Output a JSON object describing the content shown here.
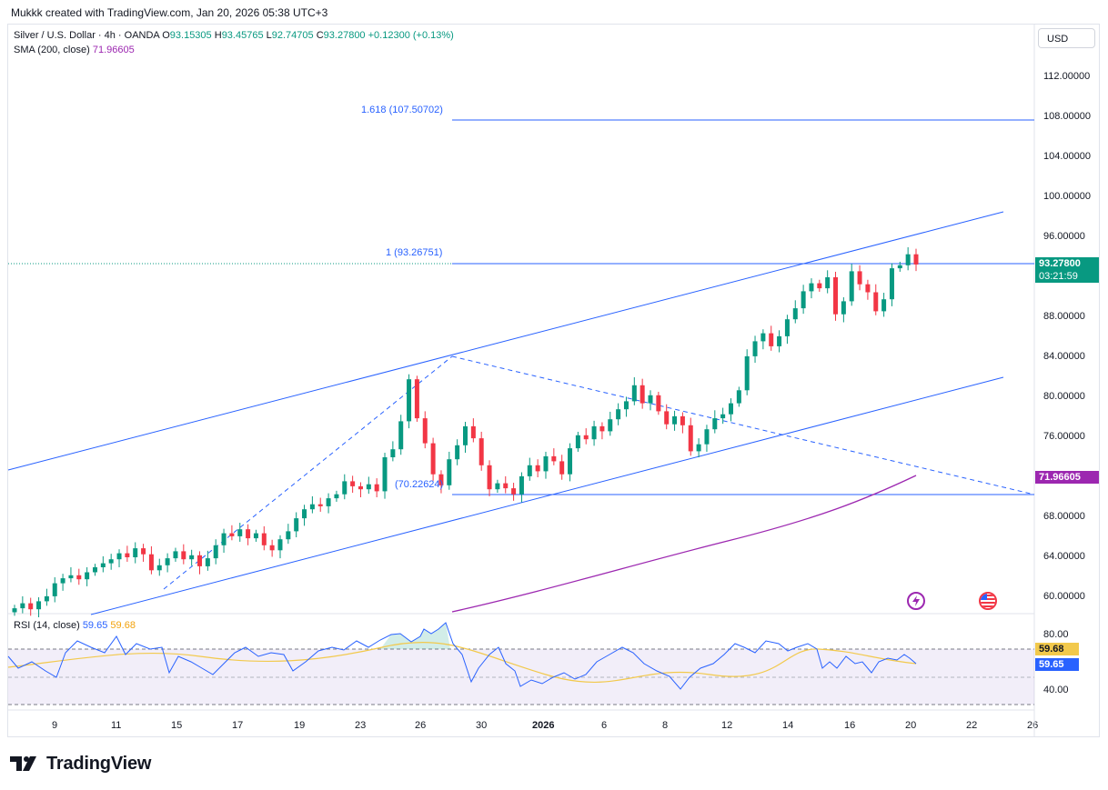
{
  "header": {
    "text": "Mukkk created with TradingView.com, Jan 20, 2026 05:38 UTC+3"
  },
  "legend": {
    "symbol": "Silver / U.S. Dollar · 4h · OANDA",
    "o_label": "O",
    "o_val": "93.15305",
    "h_label": "H",
    "h_val": "93.45765",
    "l_label": "L",
    "l_val": "92.74705",
    "c_label": "C",
    "c_val": "93.27800",
    "change": "+0.12300 (+0.13%)",
    "sma_label": "SMA (200, close)",
    "sma_val": "71.96605",
    "rsi_label": "RSI (14, close)",
    "rsi_val": "59.65",
    "rsi_ma_val": "59.68"
  },
  "currency": "USD",
  "price_axis": [
    "112.00000",
    "108.00000",
    "104.00000",
    "100.00000",
    "96.00000",
    "88.00000",
    "84.00000",
    "80.00000",
    "76.00000",
    "68.00000",
    "64.00000",
    "60.00000"
  ],
  "rsi_axis": [
    "80.00",
    "40.00"
  ],
  "time_axis": [
    "9",
    "11",
    "15",
    "17",
    "19",
    "23",
    "26",
    "30",
    "2026",
    "6",
    "8",
    "12",
    "14",
    "16",
    "20",
    "22",
    "26"
  ],
  "fib_labels": {
    "f1618": "1.618 (107.50702)",
    "f1": "1 (93.26751)",
    "f0": "(70.22624)"
  },
  "tags": {
    "last_price": "93.27800",
    "countdown": "03:21:59",
    "sma": "71.96605",
    "rsi_ma": "59.68",
    "rsi": "59.65"
  },
  "colors": {
    "up": "#089981",
    "down": "#f23645",
    "line": "#2962ff",
    "sma": "#9c27b0",
    "rsi_ma": "#f2c94c"
  },
  "brand": {
    "name": "TradingView"
  },
  "chart_data": {
    "type": "candlestick",
    "symbol": "Silver / U.S. Dollar",
    "timeframe": "4h",
    "last": {
      "open": 93.15305,
      "high": 93.45765,
      "low": 92.74705,
      "close": 93.278
    },
    "x_ticks": [
      "9",
      "11",
      "15",
      "17",
      "19",
      "23",
      "26",
      "30",
      "2026",
      "6",
      "8",
      "12",
      "14",
      "16",
      "20",
      "22",
      "26"
    ],
    "y_ticks": [
      60,
      64,
      68,
      76,
      80,
      84,
      88,
      96,
      100,
      104,
      108,
      112
    ],
    "series": [
      {
        "name": "SMA (200, close)",
        "last": 71.96605
      },
      {
        "name": "RSI (14, close)",
        "last": 59.65
      },
      {
        "name": "RSI MA",
        "last": 59.68
      }
    ],
    "fib_levels": [
      {
        "ratio": "1.618",
        "price": 107.50702
      },
      {
        "ratio": "1",
        "price": 93.26751
      },
      {
        "ratio": "0",
        "price": 70.22624
      }
    ],
    "approx_closes": [
      58.9,
      59.4,
      58.8,
      59.6,
      60.1,
      61.4,
      61.9,
      62.2,
      61.8,
      62.5,
      63.0,
      63.4,
      63.8,
      64.4,
      64.0,
      64.9,
      64.3,
      62.7,
      63.2,
      63.9,
      64.6,
      63.8,
      64.2,
      63.1,
      63.9,
      65.2,
      66.4,
      66.1,
      66.8,
      65.9,
      66.4,
      65.2,
      64.7,
      65.8,
      66.6,
      67.9,
      68.8,
      69.3,
      69.1,
      69.9,
      70.3,
      71.6,
      71.1,
      70.8,
      71.3,
      70.6,
      74.0,
      74.8,
      77.6,
      81.8,
      77.9,
      75.4,
      72.3,
      71.2,
      73.8,
      75.2,
      77.1,
      75.9,
      73.2,
      70.8,
      71.4,
      70.9,
      70.3,
      72.1,
      73.2,
      72.6,
      74.1,
      73.6,
      72.3,
      74.9,
      76.2,
      75.8,
      77.1,
      76.6,
      77.8,
      78.8,
      79.6,
      81.2,
      79.4,
      80.2,
      78.6,
      77.3,
      78.1,
      77.2,
      74.6,
      75.3,
      76.8,
      77.9,
      78.3,
      79.4,
      80.7,
      84.1,
      85.6,
      86.4,
      85.1,
      86.1,
      87.8,
      88.9,
      90.6,
      91.4,
      90.9,
      92.0,
      88.3,
      89.6,
      92.6,
      91.3,
      90.5,
      88.6,
      89.8,
      92.9,
      93.2,
      94.3,
      93.278
    ]
  }
}
